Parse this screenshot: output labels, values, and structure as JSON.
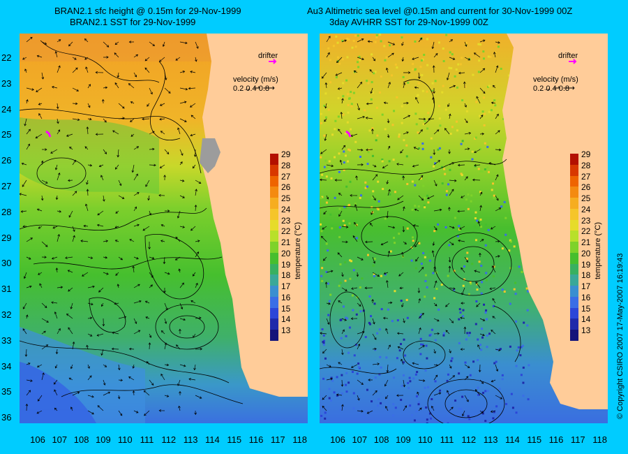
{
  "titles": {
    "left_line1": "BRAN2.1 sfc height @ 0.15m for 29-Nov-1999",
    "left_line2": "BRAN2.1 SST for 29-Nov-1999",
    "right_line1": "Au3 Altimetric sea level  @0.15m and current for 30-Nov-1999 00Z",
    "right_line2": "3day AVHRR SST for 29-Nov-1999 00Z"
  },
  "legend": {
    "drifter": "drifter",
    "velocity_title": "velocity (m/s)",
    "velocity_values": "0.2 0.4 0.8"
  },
  "axes": {
    "latitudes": [
      "22",
      "23",
      "24",
      "25",
      "26",
      "27",
      "28",
      "29",
      "30",
      "31",
      "32",
      "33",
      "34",
      "35",
      "36"
    ],
    "longitudes": [
      "106",
      "107",
      "108",
      "109",
      "110",
      "111",
      "112",
      "113",
      "114",
      "115",
      "116",
      "117",
      "118"
    ]
  },
  "colorbar": {
    "title": "temperature (°C)",
    "ticks": [
      "29",
      "28",
      "27",
      "26",
      "25",
      "24",
      "23",
      "22",
      "21",
      "20",
      "19",
      "18",
      "17",
      "16",
      "15",
      "14",
      "13"
    ],
    "colors": [
      "#b31000",
      "#d83800",
      "#ee6400",
      "#f48a10",
      "#f6ad20",
      "#f5c52a",
      "#e6dc2a",
      "#b8e02a",
      "#7ed22a",
      "#46be2e",
      "#38b060",
      "#3aa898",
      "#3a8fd0",
      "#3a6ee6",
      "#2c46d8",
      "#1f2aaa",
      "#14147a"
    ]
  },
  "map_colors": {
    "land": "#ffcc99",
    "delta": "#9c9c9c",
    "drifter": "#ff00ff"
  },
  "copyright": "© Copyright CSIRO 2007  17-May-2007 16:19:43"
}
